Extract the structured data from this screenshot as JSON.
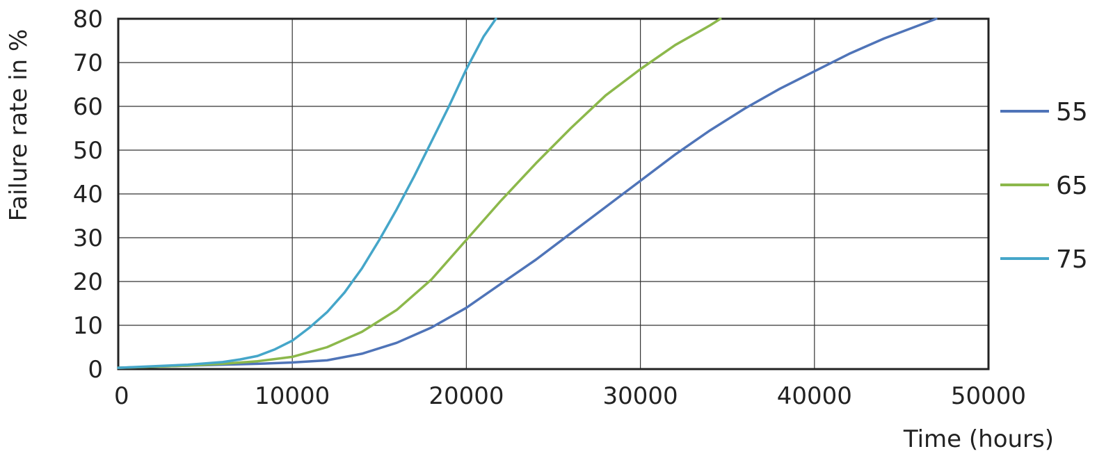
{
  "chart_data": {
    "type": "line",
    "title": "",
    "xlabel": "Time (hours)",
    "ylabel": "Failure rate in %",
    "xlim": [
      0,
      50000
    ],
    "ylim": [
      0,
      80
    ],
    "xticks": [
      "0",
      "10000",
      "20000",
      "30000",
      "40000",
      "50000"
    ],
    "yticks": [
      "0",
      "10",
      "20",
      "30",
      "40",
      "50",
      "60",
      "70",
      "80"
    ],
    "grid": true,
    "legend_position": "right",
    "series": [
      {
        "name": "55",
        "color": "#4f74b8",
        "x": [
          0,
          4000,
          8000,
          10000,
          12000,
          14000,
          16000,
          18000,
          20000,
          22000,
          24000,
          26000,
          28000,
          30000,
          32000,
          34000,
          36000,
          38000,
          40000,
          42000,
          44000,
          46000,
          47000
        ],
        "y": [
          0.3,
          0.8,
          1.2,
          1.5,
          2,
          3.5,
          6,
          9.5,
          14,
          19.5,
          25,
          31,
          37,
          43,
          49,
          54.5,
          59.5,
          64,
          68,
          72,
          75.5,
          78.5,
          80
        ]
      },
      {
        "name": "65",
        "color": "#8cb84b",
        "x": [
          0,
          4000,
          6000,
          8000,
          10000,
          12000,
          14000,
          16000,
          18000,
          20000,
          22000,
          24000,
          26000,
          28000,
          30000,
          32000,
          34000,
          34600
        ],
        "y": [
          0.3,
          0.8,
          1.2,
          1.8,
          2.8,
          5,
          8.5,
          13.5,
          20.5,
          29.5,
          38.5,
          47,
          55,
          62.5,
          68.5,
          74,
          78.5,
          80
        ]
      },
      {
        "name": "75",
        "color": "#45a6c9",
        "x": [
          0,
          4000,
          6000,
          7000,
          8000,
          9000,
          10000,
          11000,
          12000,
          13000,
          14000,
          15000,
          16000,
          17000,
          18000,
          19000,
          20000,
          21000,
          21700
        ],
        "y": [
          0.3,
          1,
          1.6,
          2.2,
          3,
          4.5,
          6.5,
          9.5,
          13,
          17.5,
          23,
          29.5,
          36.5,
          44,
          52,
          60,
          68.5,
          76,
          80
        ]
      }
    ]
  }
}
